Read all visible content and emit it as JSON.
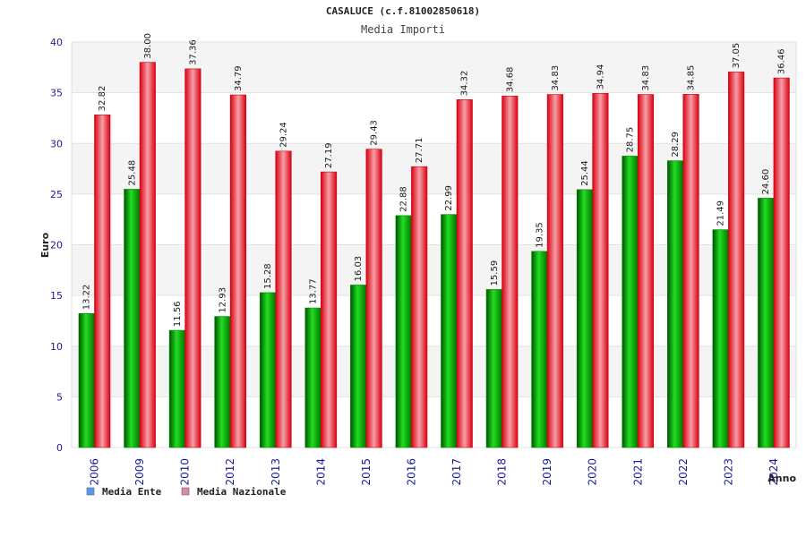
{
  "chart_data": {
    "type": "bar",
    "title": "CASALUCE (c.f.81002850618)",
    "subtitle": "Media Importi",
    "ylabel": "Euro",
    "xlabel": "Anno",
    "ylim": [
      0,
      40
    ],
    "yticks": [
      0,
      5,
      10,
      15,
      20,
      25,
      30,
      35,
      40
    ],
    "grid": true,
    "legend_position": "bottom-left",
    "categories": [
      "2006",
      "2009",
      "2010",
      "2012",
      "2013",
      "2014",
      "2015",
      "2016",
      "2017",
      "2018",
      "2019",
      "2020",
      "2021",
      "2022",
      "2023",
      "2024"
    ],
    "series": [
      {
        "name": "Media Ente",
        "color": "#00aa00",
        "legend_color": "#5599ee",
        "values": [
          13.22,
          25.48,
          11.56,
          12.93,
          15.28,
          13.77,
          16.03,
          22.88,
          22.99,
          15.59,
          19.35,
          25.44,
          28.75,
          28.29,
          21.49,
          24.6
        ],
        "labels": [
          "13.22",
          "25.48",
          "11.56",
          "12.93",
          "15.28",
          "13.77",
          "16.03",
          "22.88",
          "22.99",
          "15.59",
          "19.35",
          "25.44",
          "28.75",
          "28.29",
          "21.49",
          "24.60"
        ]
      },
      {
        "name": "Media Nazionale",
        "color": "#ee1122",
        "legend_color": "#dd88aa",
        "values": [
          32.82,
          38.0,
          37.36,
          34.79,
          29.24,
          27.19,
          29.43,
          27.71,
          34.32,
          34.68,
          34.83,
          34.94,
          34.83,
          34.85,
          37.05,
          36.46
        ],
        "labels": [
          "32.82",
          "38.00",
          "37.36",
          "34.79",
          "29.24",
          "27.19",
          "29.43",
          "27.71",
          "34.32",
          "34.68",
          "34.83",
          "34.94",
          "34.83",
          "34.85",
          "37.05",
          "36.46"
        ]
      }
    ]
  }
}
